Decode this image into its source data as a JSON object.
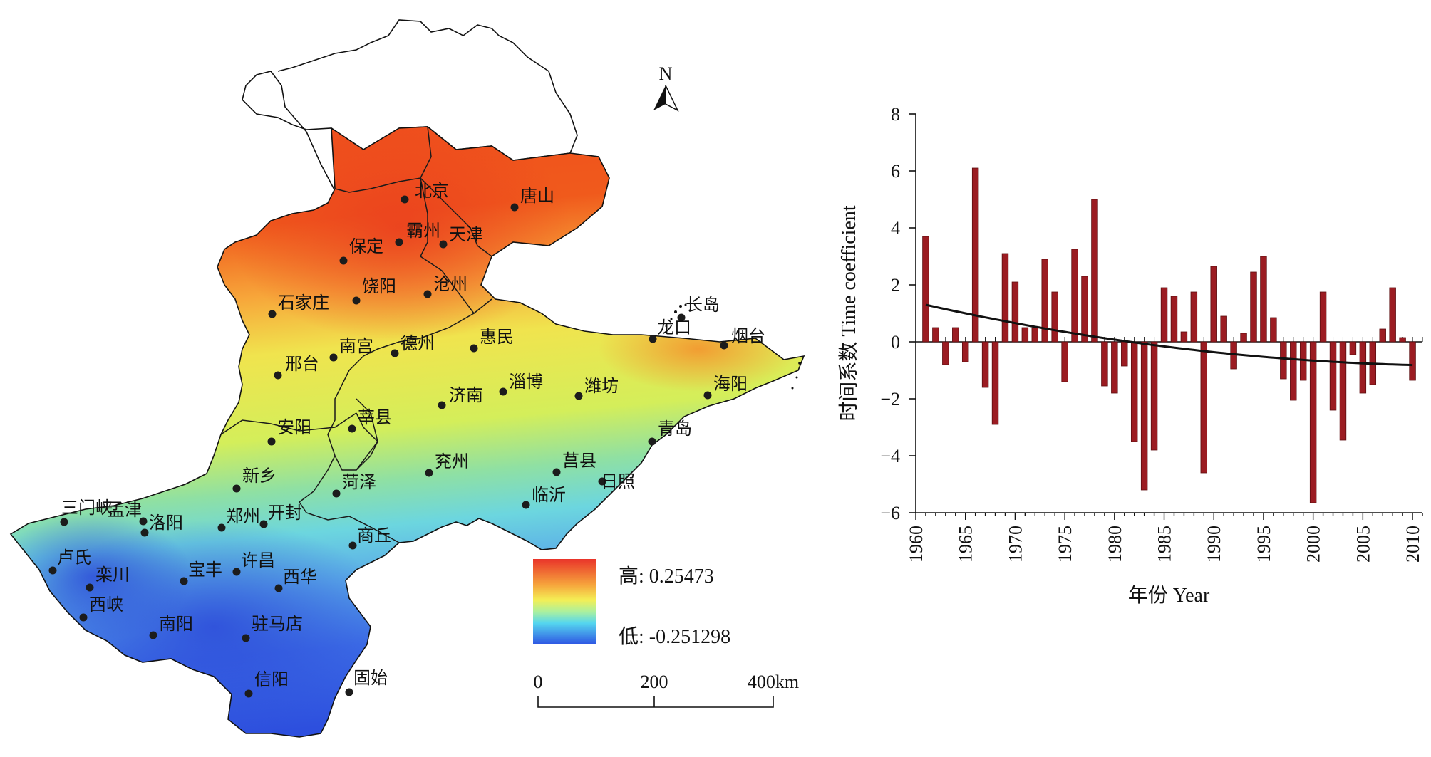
{
  "map": {
    "north_label": "N",
    "legend": {
      "high_label": "高: 0.25473",
      "low_label": "低: -0.251298"
    },
    "scale": {
      "ticks": [
        "0",
        "200",
        "400km"
      ]
    },
    "cities": [
      {
        "name": "北京",
        "value": 0.24
      },
      {
        "name": "唐山",
        "value": 0.2
      },
      {
        "name": "霸州",
        "value": 0.25
      },
      {
        "name": "天津",
        "value": 0.23
      },
      {
        "name": "保定",
        "value": 0.24
      },
      {
        "name": "饶阳",
        "value": 0.22
      },
      {
        "name": "沧州",
        "value": 0.22
      },
      {
        "name": "石家庄",
        "value": 0.14
      },
      {
        "name": "长岛",
        "value": 0.13
      },
      {
        "name": "龙口",
        "value": 0.14
      },
      {
        "name": "烟台",
        "value": 0.16
      },
      {
        "name": "南宫",
        "value": 0.15
      },
      {
        "name": "德州",
        "value": 0.15
      },
      {
        "name": "惠民",
        "value": 0.16
      },
      {
        "name": "邢台",
        "value": 0.08
      },
      {
        "name": "济南",
        "value": 0.07
      },
      {
        "name": "淄博",
        "value": 0.08
      },
      {
        "name": "潍坊",
        "value": 0.09
      },
      {
        "name": "海阳",
        "value": 0.12
      },
      {
        "name": "莘县",
        "value": 0.06
      },
      {
        "name": "安阳",
        "value": 0.02
      },
      {
        "name": "青岛",
        "value": 0.05
      },
      {
        "name": "兖州",
        "value": 0.05
      },
      {
        "name": "莒县",
        "value": 0.05
      },
      {
        "name": "日照",
        "value": 0.04
      },
      {
        "name": "新乡",
        "value": -0.03
      },
      {
        "name": "菏泽",
        "value": 0.02
      },
      {
        "name": "临沂",
        "value": 0.04
      },
      {
        "name": "三门峡",
        "value": -0.14
      },
      {
        "name": "孟津",
        "value": -0.12
      },
      {
        "name": "洛阳",
        "value": -0.12
      },
      {
        "name": "郑州",
        "value": -0.08
      },
      {
        "name": "开封",
        "value": -0.05
      },
      {
        "name": "商丘",
        "value": -0.03
      },
      {
        "name": "卢氏",
        "value": -0.17
      },
      {
        "name": "栾川",
        "value": -0.18
      },
      {
        "name": "宝丰",
        "value": -0.15
      },
      {
        "name": "许昌",
        "value": -0.13
      },
      {
        "name": "西华",
        "value": -0.12
      },
      {
        "name": "西峡",
        "value": -0.19
      },
      {
        "name": "南阳",
        "value": -0.21
      },
      {
        "name": "驻马店",
        "value": -0.25
      },
      {
        "name": "信阳",
        "value": -0.23
      },
      {
        "name": "固始",
        "value": -0.2
      }
    ]
  },
  "chart_data": {
    "type": "bar",
    "xlabel": "年份 Year",
    "ylabel": "时间系数 Time coefficient",
    "x_ticks": [
      "1960",
      "1965",
      "1970",
      "1975",
      "1980",
      "1985",
      "1990",
      "1995",
      "2000",
      "2005",
      "2010"
    ],
    "y_ticks": [
      "8",
      "6",
      "4",
      "2",
      "0",
      "−2",
      "−4",
      "−6"
    ],
    "xlim": [
      1960,
      2011
    ],
    "ylim": [
      -6,
      8
    ],
    "bar_color": "#9b1c22",
    "years": [
      1961,
      1962,
      1963,
      1964,
      1965,
      1966,
      1967,
      1968,
      1969,
      1970,
      1971,
      1972,
      1973,
      1974,
      1975,
      1976,
      1977,
      1978,
      1979,
      1980,
      1981,
      1982,
      1983,
      1984,
      1985,
      1986,
      1987,
      1988,
      1989,
      1990,
      1991,
      1992,
      1993,
      1994,
      1995,
      1996,
      1997,
      1998,
      1999,
      2000,
      2001,
      2002,
      2003,
      2004,
      2005,
      2006,
      2007,
      2008,
      2009,
      2010
    ],
    "values": [
      3.7,
      0.5,
      -0.8,
      0.5,
      -0.7,
      6.1,
      -1.6,
      -2.9,
      3.1,
      2.1,
      0.5,
      0.5,
      2.9,
      1.75,
      -1.4,
      3.25,
      2.3,
      5.0,
      -1.55,
      -1.8,
      -0.85,
      -3.5,
      -5.2,
      -3.8,
      1.9,
      1.6,
      0.35,
      1.75,
      -4.6,
      2.65,
      0.9,
      -0.95,
      0.3,
      2.45,
      3.0,
      0.85,
      -1.3,
      -2.05,
      -1.35,
      -5.65,
      1.75,
      -2.4,
      -3.45,
      -0.45,
      -1.8,
      -1.5,
      0.45,
      1.9,
      0.15,
      -1.35
    ],
    "trend": {
      "type": "quadratic",
      "coefficients": [
        1.3,
        -0.0778,
        0.000707
      ],
      "color": "#111111"
    }
  }
}
